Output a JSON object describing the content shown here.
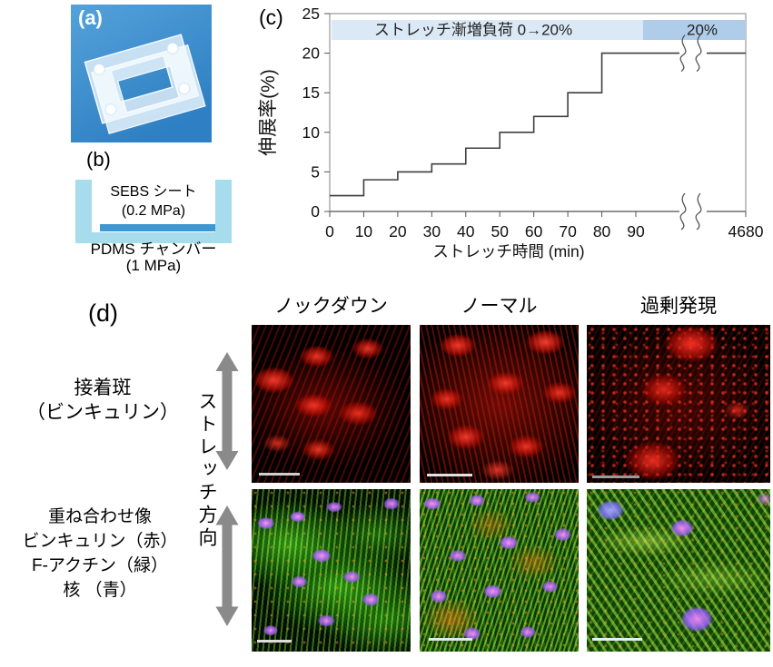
{
  "figure": {
    "panel_a": {
      "label": "(a)"
    },
    "panel_b": {
      "label": "(b)",
      "sheet_line1": "SEBS シート",
      "sheet_line2": "(0.2 MPa)",
      "chamber_line1": "PDMS チャンバー",
      "chamber_line2": "(1 MPa)"
    },
    "panel_c": {
      "label": "(c)"
    },
    "panel_d": {
      "label": "(d)",
      "column_headers": [
        "ノックダウン",
        "ノーマル",
        "過剰発現"
      ],
      "row1_label_line1": "接着斑",
      "row1_label_line2": "（ビンキュリン）",
      "row2_label_line1": "重ね合わせ像",
      "row2_label_line2": "ビンキュリン（赤）",
      "row2_label_line3": "F-アクチン（緑）",
      "row2_label_line4": "核 （青）",
      "stretch_direction_label": "ストレッチ方向"
    }
  },
  "colors": {
    "photo_background_blue": "#3b8fd0",
    "schematic_chamber_blue": "#a6dcec",
    "schematic_sheet_blue": "#3e97d3",
    "banner_light_blue": "#dbe9f6",
    "banner_dark_blue": "#afcce9",
    "arrow_gray": "#8a8a8a",
    "vinculin_red": "#e02010",
    "factin_green": "#46c81e",
    "nucleus_magenta": "#c878f0"
  },
  "chart_data": {
    "type": "line",
    "line_style": "step",
    "title": "",
    "xlabel": "ストレッチ時間 (min)",
    "ylabel": "伸展率(%)",
    "ylim": [
      0,
      25
    ],
    "y_ticks": [
      0,
      5,
      10,
      15,
      20,
      25
    ],
    "x_ticks": [
      0,
      10,
      20,
      30,
      40,
      50,
      60,
      70,
      80,
      90,
      4680
    ],
    "x_axis_break_between": [
      90,
      4680
    ],
    "steps": [
      {
        "t": 0,
        "strain": 2
      },
      {
        "t": 10,
        "strain": 4
      },
      {
        "t": 20,
        "strain": 5
      },
      {
        "t": 30,
        "strain": 6
      },
      {
        "t": 40,
        "strain": 8
      },
      {
        "t": 50,
        "strain": 10
      },
      {
        "t": 60,
        "strain": 12
      },
      {
        "t": 70,
        "strain": 15
      },
      {
        "t": 80,
        "strain": 20
      }
    ],
    "hold_value": 20,
    "hold_until": 4680,
    "annotations": [
      {
        "text": "ストレッチ漸増負荷 0→20%",
        "band": "light"
      },
      {
        "text": "20%",
        "band": "dark"
      }
    ],
    "band_colors": {
      "light": "#dbe9f6",
      "dark": "#afcce9"
    },
    "line_color": "#3f3f3f",
    "grid": "off",
    "legend": "none"
  }
}
